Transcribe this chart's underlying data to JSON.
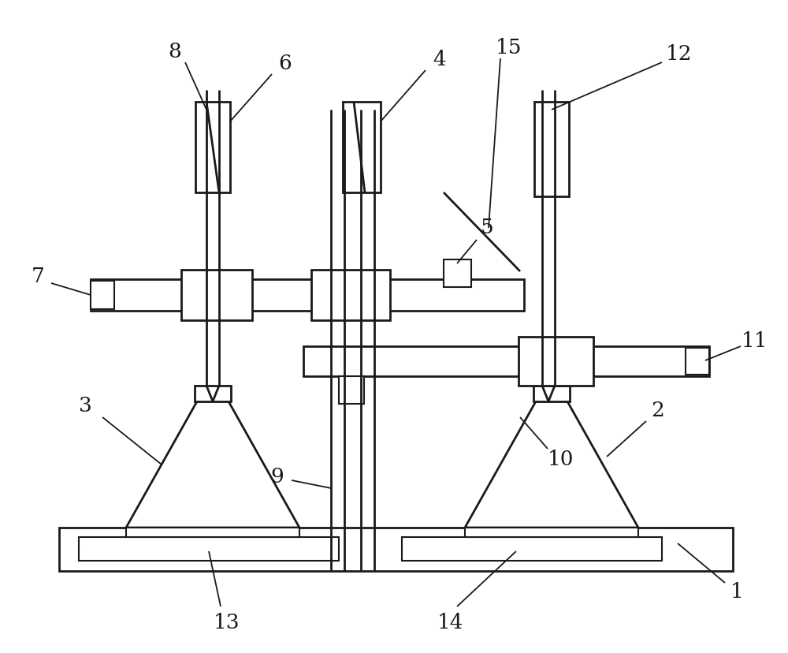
{
  "bg_color": "#ffffff",
  "line_color": "#1a1a1a",
  "lw": 2.0,
  "tlw": 1.5,
  "fig_width": 10.0,
  "fig_height": 8.29,
  "dpi": 100
}
